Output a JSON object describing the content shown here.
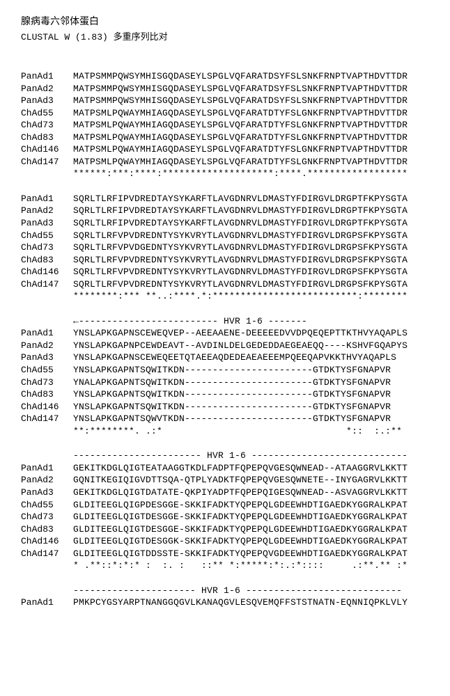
{
  "title_cjk": "腺病毒六邻体蛋白",
  "subtitle_prefix": "CLUSTAL W (1.83) ",
  "subtitle_cjk": "多重序列比对",
  "labels": [
    "PanAd1",
    "PanAd2",
    "PanAd3",
    "ChAd55",
    "ChAd73",
    "ChAd83",
    "ChAd146",
    "ChAd147"
  ],
  "blocks": [
    {
      "seqs": [
        "MATPSMMPQWSYMHISGQDASEYLSPGLVQFARATDSYFSLSNKFRNPTVAPTHDVTTDR",
        "MATPSMMPQWSYMHISGQDASEYLSPGLVQFARATDSYFSLSNKFRNPTVAPTHDVTTDR",
        "MATPSMMPQWSYMHISGQDASEYLSPGLVQFARATDSYFSLSNKFRNPTVAPTHDVTTDR",
        "MATPSMLPQWAYMHIAGQDASEYLSPGLVQFARATDTYFSLGNKFRNPTVAPTHDVTTDR",
        "MATPSMLPQWAYMHIAGQDASEYLSPGLVQFARATDTYFSLGNKFRNPTVAPTHDVTTDR",
        "MATPSMLPQWAYMHIAGQDASEYLSPGLVQFARATDTYFSLGNKFRNPTVAPTHDVTTDR",
        "MATPSMLPQWAYMHIAGQDASEYLSPGLVQFARATDTYFSLGNKFRNPTVAPTHDVTTDR",
        "MATPSMLPQWAYMHIAGQDASEYLSPGLVQFARATDTYFSLGNKFRNPTVAPTHDVTTDR"
      ],
      "cons": "******:***:****:********************:****.******************"
    },
    {
      "seqs": [
        "SQRLTLRFIPVDREDTAYSYKARFTLAVGDNRVLDMASTYFDIRGVLDRGPTFKPYSGTA",
        "SQRLTLRFIPVDREDTAYSYKARFTLAVGDNRVLDMASTYFDIRGVLDRGPTFKPYSGTA",
        "SQRLTLRFIPVDREDTAYSYKARFTLAVGDNRVLDMASTYFDIRGVLDRGPTFKPYSGTA",
        "SQRLTLRFVPVDREDNTYSYKVRYTLAVGDNRVLDMASTYFDIRGVLDRGPSFKPYSGTA",
        "SQRLTLRFVPVDGEDNTYSYKVRYTLAVGDNRVLDMASTYFDIRGVLDRGPSFKPYSGTA",
        "SQRLTLRFVPVDREDNTYSYKVRYTLAVGDNRVLDMASTYFDIRGVLDRGPSFKPYSGTA",
        "SQRLTLRFVPVDREDNTYSYKVRYTLAVGDNRVLDMASTYFDIRGVLDRGPSFKPYSGTA",
        "SQRLTLRFVPVDREDNTYSYKVRYTLAVGDNRVLDMASTYFDIRGVLDRGPSFKPYSGTA"
      ],
      "cons": "********:*** **..:****.*:**************************:********"
    },
    {
      "hvr_header": "←------------------------- HVR 1-6 -------",
      "seqs": [
        "YNSLAPKGAPNSCEWEQVEP--AEEAAENE-DEEEEEDVVDPQEQEPTTKTHVYAQAPLS",
        "YNSLAPKGAPNPCEWDEAVT--AVDINLDELGEDEDDAEGEAEQQ----KSHVFGQAPYS",
        "YNSLAPKGAPNSCEWEQEETQTAEEAQDEDEAEAEEEMPQEEQAPVKKTHVYAQAPLS",
        "YNSLAPKGAPNTSQWITKDN-----------------------GTDKTYSFGNAPVR",
        "YNALAPKGAPNTSQWITKDN-----------------------GTDKTYSFGNAPVR",
        "YNSLAPKGAPNTSQWITKDN-----------------------GTDKTYSFGNAPVR",
        "YNSLAPKGAPNTSQWITKDN-----------------------GTDKTYSFGNAPVR",
        "YNSLAPKGAPNTSQWVTKDN-----------------------GTDKTYSFGNAPVR"
      ],
      "cons": "**:********. .:*                                 *::  :.:**"
    },
    {
      "hvr_header": "----------------------- HVR 1-6 ----------------------------",
      "seqs": [
        "GEKITKDGLQIGTEATAAGGTKDLFADPTFQPEPQVGESQWNEAD--ATAAGGRVLKKTT",
        "GQNITKEGIQIGVDTTSQA-QTPLYADKTFQPEPQVGESQWNETE--INYGAGRVLKKTT",
        "GEKITKDGLQIGTDATATE-QKPIYADPTFQPEPQIGESQWNEAD--ASVAGGRVLKKTT",
        "GLDITEEGLQIGPDESGGE-SKKIFADKTYQPEPQLGDEEWHDTIGAEDKYGGRALKPAT",
        "GLDITEEGLQIGTDESGGE-SKKIFADKTYQPEPQLGDEEWHDTIGAEDKYGGRALKPAT",
        "GLDITEEGLQIGTDESGGE-SKKIFADKTYQPEPQLGDEEWHDTIGAEDKYGGRALKPAT",
        "GLDITEEGLQIGTDESGGK-SKKIFADKTYQPEPQLGDEEWHDTIGAEDKYGGRALKPAT",
        "GLDITEEGLQIGTDDSSTE-SKKIFADKTYQPEPQVGDEEWHDTIGAEDKYGGRALKPAT"
      ],
      "cons": "* .**::*:*:* :  :. :   ::** *:*****:*:.:*::::     .:**.** :*"
    }
  ],
  "footer": {
    "hvr_header": "---------------------- HVR 1-6 ----------------------------",
    "label": "PanAd1",
    "seq": "PMKPCYGSYARPTNANGGQGVLKANAQGVLESQVEMQFFSTSTNATN-EQNNIQPKLVLY"
  }
}
